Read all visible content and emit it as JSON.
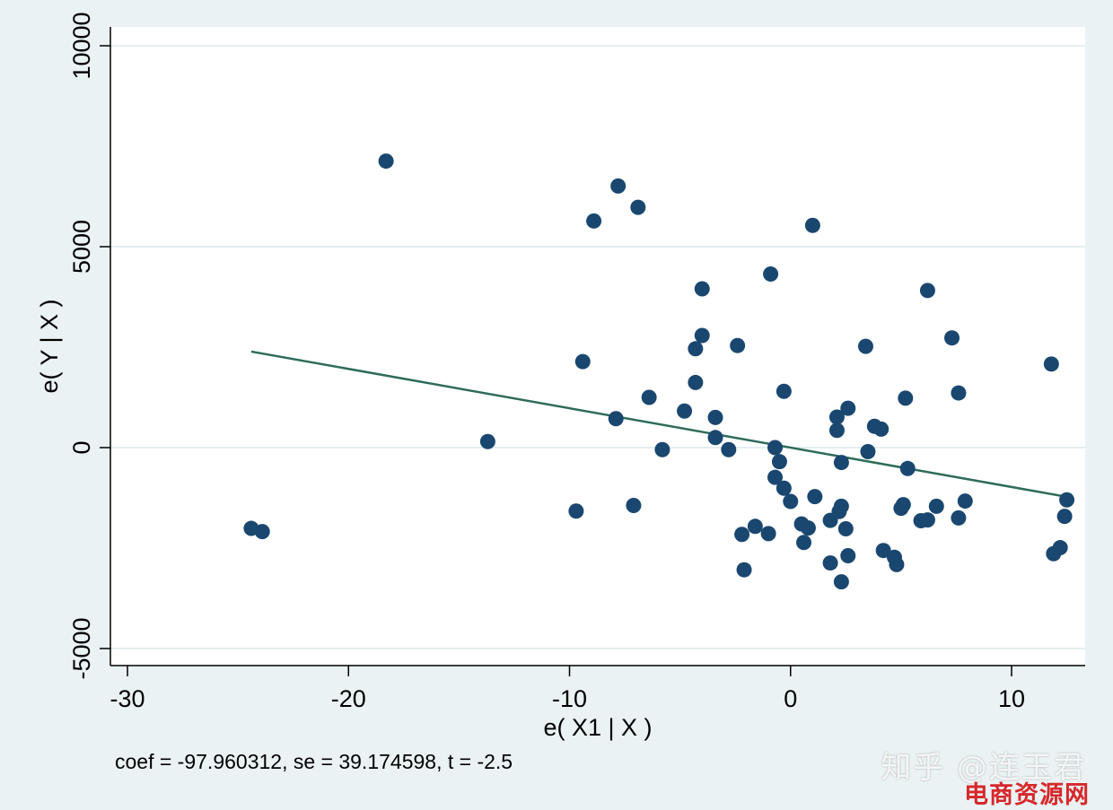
{
  "chart_data": {
    "type": "scatter",
    "xlabel": "e( X1 | X )",
    "ylabel": "e( Y | X )",
    "xlim": [
      -31,
      13.5
    ],
    "ylim": [
      -5500,
      10500
    ],
    "xticks": [
      -30,
      -20,
      -10,
      0,
      10
    ],
    "yticks": [
      -5000,
      0,
      5000,
      10000
    ],
    "grid": true,
    "colors": {
      "marker": "#1a476f",
      "fit_line": "#2e6b5a",
      "grid": "#e4eef0",
      "background": "#eaf2f3",
      "plot_background": "#ffffff"
    },
    "points": [
      {
        "x": -24.4,
        "y": -2010
      },
      {
        "x": -23.9,
        "y": -2090
      },
      {
        "x": -18.3,
        "y": 7130
      },
      {
        "x": -13.7,
        "y": 150
      },
      {
        "x": -9.7,
        "y": -1580
      },
      {
        "x": -9.4,
        "y": 2140
      },
      {
        "x": -8.9,
        "y": 5640
      },
      {
        "x": -7.9,
        "y": 720
      },
      {
        "x": -7.8,
        "y": 6510
      },
      {
        "x": -7.1,
        "y": -1440
      },
      {
        "x": -6.9,
        "y": 5980
      },
      {
        "x": -6.4,
        "y": 1250
      },
      {
        "x": -5.8,
        "y": -50
      },
      {
        "x": -4.8,
        "y": 910
      },
      {
        "x": -4.3,
        "y": 2460
      },
      {
        "x": -4.3,
        "y": 1620
      },
      {
        "x": -4.0,
        "y": 2790
      },
      {
        "x": -4.0,
        "y": 3950
      },
      {
        "x": -3.4,
        "y": 250
      },
      {
        "x": -3.4,
        "y": 750
      },
      {
        "x": -2.8,
        "y": -50
      },
      {
        "x": -2.4,
        "y": 2540
      },
      {
        "x": -2.2,
        "y": -2160
      },
      {
        "x": -2.1,
        "y": -3040
      },
      {
        "x": -1.6,
        "y": -1960
      },
      {
        "x": -1.0,
        "y": -2140
      },
      {
        "x": -0.9,
        "y": 4320
      },
      {
        "x": -0.7,
        "y": 0
      },
      {
        "x": -0.7,
        "y": -740
      },
      {
        "x": -0.5,
        "y": -350
      },
      {
        "x": -0.3,
        "y": 1400
      },
      {
        "x": -0.3,
        "y": -1010
      },
      {
        "x": 0.0,
        "y": -1340
      },
      {
        "x": 0.5,
        "y": -1900
      },
      {
        "x": 0.6,
        "y": -2360
      },
      {
        "x": 0.8,
        "y": -2000
      },
      {
        "x": 1.0,
        "y": 5530
      },
      {
        "x": 1.1,
        "y": -1220
      },
      {
        "x": 1.8,
        "y": -2870
      },
      {
        "x": 1.8,
        "y": -1810
      },
      {
        "x": 2.1,
        "y": 430
      },
      {
        "x": 2.1,
        "y": 760
      },
      {
        "x": 2.2,
        "y": -1590
      },
      {
        "x": 2.3,
        "y": -1460
      },
      {
        "x": 2.3,
        "y": -370
      },
      {
        "x": 2.3,
        "y": -3340
      },
      {
        "x": 2.5,
        "y": -2020
      },
      {
        "x": 2.6,
        "y": -2690
      },
      {
        "x": 2.6,
        "y": 980
      },
      {
        "x": 3.4,
        "y": 2520
      },
      {
        "x": 3.5,
        "y": -100
      },
      {
        "x": 3.8,
        "y": 530
      },
      {
        "x": 4.1,
        "y": 460
      },
      {
        "x": 4.2,
        "y": -2560
      },
      {
        "x": 4.7,
        "y": -2730
      },
      {
        "x": 4.8,
        "y": -2910
      },
      {
        "x": 5.0,
        "y": -1510
      },
      {
        "x": 5.1,
        "y": -1420
      },
      {
        "x": 5.2,
        "y": 1230
      },
      {
        "x": 5.3,
        "y": -520
      },
      {
        "x": 5.9,
        "y": -1820
      },
      {
        "x": 6.2,
        "y": 3910
      },
      {
        "x": 6.2,
        "y": -1800
      },
      {
        "x": 6.6,
        "y": -1460
      },
      {
        "x": 7.3,
        "y": 2730
      },
      {
        "x": 7.6,
        "y": 1360
      },
      {
        "x": 7.6,
        "y": -1750
      },
      {
        "x": 7.9,
        "y": -1330
      },
      {
        "x": 11.8,
        "y": 2080
      },
      {
        "x": 11.9,
        "y": -2640
      },
      {
        "x": 12.2,
        "y": -2490
      },
      {
        "x": 12.4,
        "y": -1710
      },
      {
        "x": 12.5,
        "y": -1300
      }
    ],
    "fit_line": {
      "x": [
        -24.4,
        12.5
      ],
      "y": [
        2390,
        -1225
      ]
    },
    "note": "coef = -97.960312, se = 39.174598, t = -2.5"
  },
  "watermark": {
    "text": "知乎 @连玉君",
    "site": "电商资源网"
  }
}
